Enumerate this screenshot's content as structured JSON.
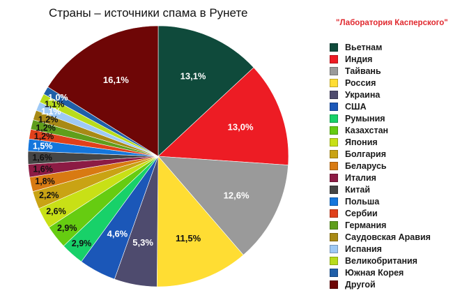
{
  "chart_data": {
    "type": "pie",
    "title": "Страны – источники спама в Рунете",
    "source": "\"Лаборатория Касперского\"",
    "legend_position": "right",
    "slices": [
      {
        "label": "Вьетнам",
        "value": 13.1,
        "display": "13,1%",
        "color": "#0f4a3b"
      },
      {
        "label": "Индия",
        "value": 13.0,
        "display": "13,0%",
        "color": "#ed1c24"
      },
      {
        "label": "Тайвань",
        "value": 12.6,
        "display": "12,6%",
        "color": "#9a9a9a"
      },
      {
        "label": "Россия",
        "value": 11.5,
        "display": "11,5%",
        "color": "#ffdd33"
      },
      {
        "label": "Украина",
        "value": 5.3,
        "display": "5,3%",
        "color": "#4e4b6e"
      },
      {
        "label": "США",
        "value": 4.6,
        "display": "4,6%",
        "color": "#1b57b8"
      },
      {
        "label": "Румыния",
        "value": 2.9,
        "display": "2,9%",
        "color": "#18d169"
      },
      {
        "label": "Казахстан",
        "value": 2.9,
        "display": "2,9%",
        "color": "#66cc11"
      },
      {
        "label": "Япония",
        "value": 2.6,
        "display": "2,6%",
        "color": "#c8e016"
      },
      {
        "label": "Болгария",
        "value": 2.2,
        "display": "2,2%",
        "color": "#c9a314"
      },
      {
        "label": "Беларусь",
        "value": 1.8,
        "display": "1,8%",
        "color": "#d87a12"
      },
      {
        "label": "Италия",
        "value": 1.6,
        "display": "1,6%",
        "color": "#8c1b44"
      },
      {
        "label": "Китай",
        "value": 1.6,
        "display": "1,6%",
        "color": "#454545"
      },
      {
        "label": "Польша",
        "value": 1.5,
        "display": "1,5%",
        "color": "#1476dc"
      },
      {
        "label": "Сербии",
        "value": 1.2,
        "display": "1,2%",
        "color": "#e0401b"
      },
      {
        "label": "Германия",
        "value": 1.2,
        "display": "1,2%",
        "color": "#5f9e1b"
      },
      {
        "label": "Саудовская Аравия",
        "value": 1.2,
        "display": "1,2%",
        "color": "#a88a16"
      },
      {
        "label": "Испания",
        "value": 1.1,
        "display": "1,1%",
        "color": "#9ec9f5"
      },
      {
        "label": "Великобритания",
        "value": 1.1,
        "display": "1,1%",
        "color": "#b8dc1c"
      },
      {
        "label": "Южная Корея",
        "value": 1.0,
        "display": "1,0%",
        "color": "#1f5fa8"
      },
      {
        "label": "Другой",
        "value": 16.1,
        "display": "16,1%",
        "color": "#6e0606"
      }
    ]
  }
}
